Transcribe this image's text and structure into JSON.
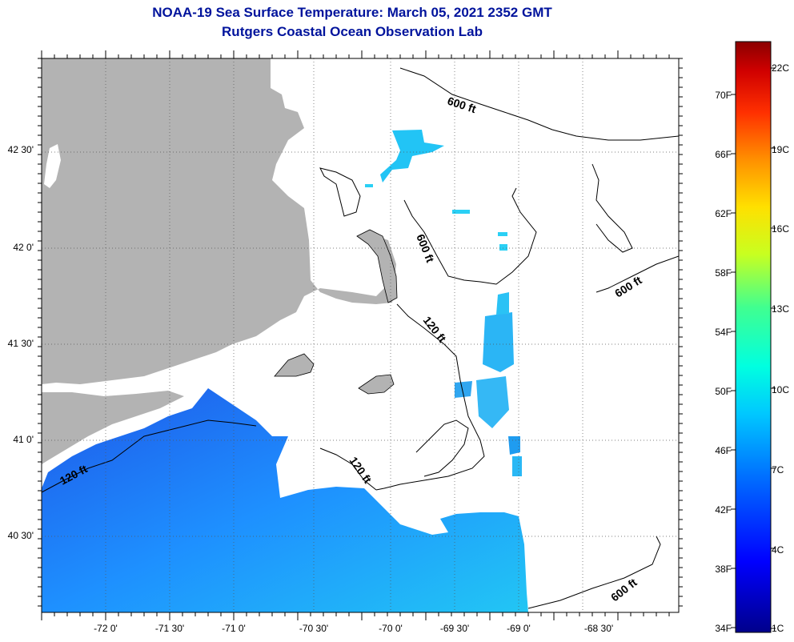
{
  "header": {
    "title": "NOAA-19 Sea Surface Temperature:  March 05, 2021 2352 GMT",
    "subtitle": "Rutgers Coastal Ocean Observation Lab"
  },
  "axes": {
    "latitude_labels": [
      "42 30'",
      "42 0'",
      "41 30'",
      "41 0'",
      "40 30'"
    ],
    "longitude_labels": [
      "-72 0'",
      "-71 30'",
      "-71 0'",
      "-70 30'",
      "-70 0'",
      "-69 30'",
      "-69 0'",
      "-68 30'"
    ]
  },
  "contours": {
    "labels": [
      "600 ft",
      "600 ft",
      "600 ft",
      "600 ft",
      "120 ft",
      "120 ft",
      "120 ft"
    ]
  },
  "colorbar": {
    "fahrenheit_labels": [
      "70F",
      "66F",
      "62F",
      "58F",
      "54F",
      "50F",
      "46F",
      "42F",
      "38F",
      "34F"
    ],
    "celsius_labels": [
      "22C",
      "19C",
      "16C",
      "13C",
      "10C",
      "7C",
      "4C",
      "1C"
    ],
    "range_f": [
      34,
      73
    ],
    "range_c": [
      1,
      23
    ]
  },
  "colors": {
    "title": "#00139c",
    "land": "#b3b3b3",
    "no_data": "#ffffff",
    "sst_low": "#00008b",
    "sst_high": "#8b0000"
  }
}
